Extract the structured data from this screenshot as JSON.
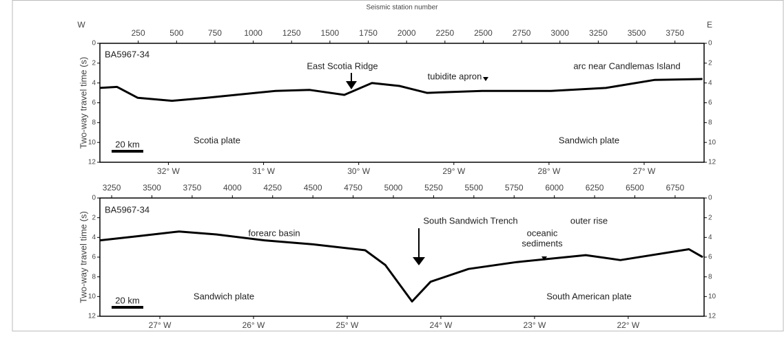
{
  "chart_data": [
    {
      "type": "line",
      "title": "Seismic station number",
      "west_label": "W",
      "east_label": "E",
      "ylabel": "Two-way travel time (s)",
      "color": "#000000",
      "yaxis_reversed": true,
      "x": [
        0,
        112,
        247,
        471,
        696,
        1145,
        1369,
        1594,
        1774,
        1953,
        2133,
        2492,
        2941,
        3300,
        3615,
        3929
      ],
      "values": [
        4.5,
        4.4,
        5.5,
        5.8,
        5.5,
        4.8,
        4.7,
        5.2,
        4.0,
        4.3,
        5.0,
        4.8,
        4.8,
        4.5,
        3.7,
        3.6
      ],
      "xlim": [
        0,
        3940
      ],
      "xticks": [
        250,
        500,
        750,
        1000,
        1250,
        1500,
        1750,
        2000,
        2250,
        2500,
        2750,
        3000,
        3250,
        3500,
        3750
      ],
      "ylim": [
        0,
        12
      ],
      "yticks": [
        0,
        2,
        4,
        6,
        8,
        10,
        12
      ],
      "x2lim": [
        -32.72,
        -26.37
      ],
      "x2ticks": [
        {
          "value": -32,
          "label": "32° W"
        },
        {
          "value": -31,
          "label": "31° W"
        },
        {
          "value": -30,
          "label": "30° W"
        },
        {
          "value": -29,
          "label": "29° W"
        },
        {
          "value": -28,
          "label": "28° W"
        },
        {
          "value": -27,
          "label": "27° W"
        }
      ],
      "annotations": [
        "BA5967-34",
        "East Scotia Ridge",
        "tubidite apron",
        "arc near Candlemas Island",
        "Scotia plate",
        "Sandwich plate",
        "20 km"
      ]
    },
    {
      "type": "line",
      "ylabel": "Two-way travel time (s)",
      "color": "#000000",
      "yaxis_reversed": true,
      "x": [
        3177,
        3400,
        3669,
        3900,
        4200,
        4500,
        4825,
        4950,
        5116,
        5231,
        5467,
        5766,
        6195,
        6410,
        6836,
        6922
      ],
      "values": [
        4.3,
        3.9,
        3.4,
        3.7,
        4.3,
        4.7,
        5.3,
        6.8,
        10.5,
        8.5,
        7.2,
        6.5,
        5.8,
        6.3,
        5.2,
        6.0
      ],
      "xlim": [
        3177,
        6930
      ],
      "xticks": [
        3250,
        3500,
        3750,
        4000,
        4250,
        4500,
        4750,
        5000,
        5250,
        5500,
        5750,
        6000,
        6250,
        6500,
        6750
      ],
      "ylim": [
        0,
        12
      ],
      "yticks": [
        0,
        2,
        4,
        6,
        8,
        10,
        12
      ],
      "x2lim": [
        -27.64,
        -21.19
      ],
      "x2ticks": [
        {
          "value": -27,
          "label": "27° W"
        },
        {
          "value": -26,
          "label": "26° W"
        },
        {
          "value": -25,
          "label": "25° W"
        },
        {
          "value": -24,
          "label": "24° W"
        },
        {
          "value": -23,
          "label": "23° W"
        },
        {
          "value": -22,
          "label": "22° W"
        }
      ],
      "annotations": [
        "BA5967-34",
        "forearc basin",
        "South Sandwich Trench",
        "oceanic",
        "sediments",
        "outer rise",
        "Sandwich plate",
        "South American plate",
        "20 km"
      ]
    }
  ]
}
